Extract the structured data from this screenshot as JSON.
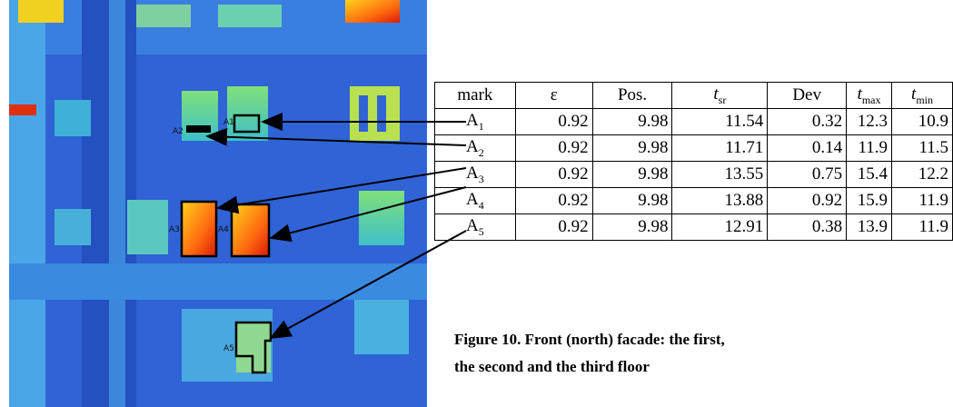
{
  "image": {
    "labels": [
      "A1",
      "A2",
      "A3",
      "A4",
      "A5"
    ]
  },
  "table": {
    "header": [
      {
        "main": "mark"
      },
      {
        "main": "ε"
      },
      {
        "main": "Pos."
      },
      {
        "main": "t",
        "sub": "sr"
      },
      {
        "main": "Dev"
      },
      {
        "main": "t",
        "sub": "max"
      },
      {
        "main": "t",
        "sub": "min"
      }
    ],
    "rows": [
      [
        {
          "main": "A",
          "sub": "1"
        },
        0.92,
        9.98,
        11.54,
        0.32,
        12.3,
        10.9
      ],
      [
        {
          "main": "A",
          "sub": "2"
        },
        0.92,
        9.98,
        11.71,
        0.14,
        11.9,
        11.5
      ],
      [
        {
          "main": "A",
          "sub": "3"
        },
        0.92,
        9.98,
        13.55,
        0.75,
        15.4,
        12.2
      ],
      [
        {
          "main": "A",
          "sub": "4"
        },
        0.92,
        9.98,
        13.88,
        0.92,
        15.9,
        11.9
      ],
      [
        {
          "main": "A",
          "sub": "5"
        },
        0.92,
        9.98,
        12.91,
        0.38,
        13.9,
        11.9
      ]
    ]
  },
  "caption": [
    "Figure 10. Front (north) facade: the first,",
    "the second and the third floor"
  ]
}
